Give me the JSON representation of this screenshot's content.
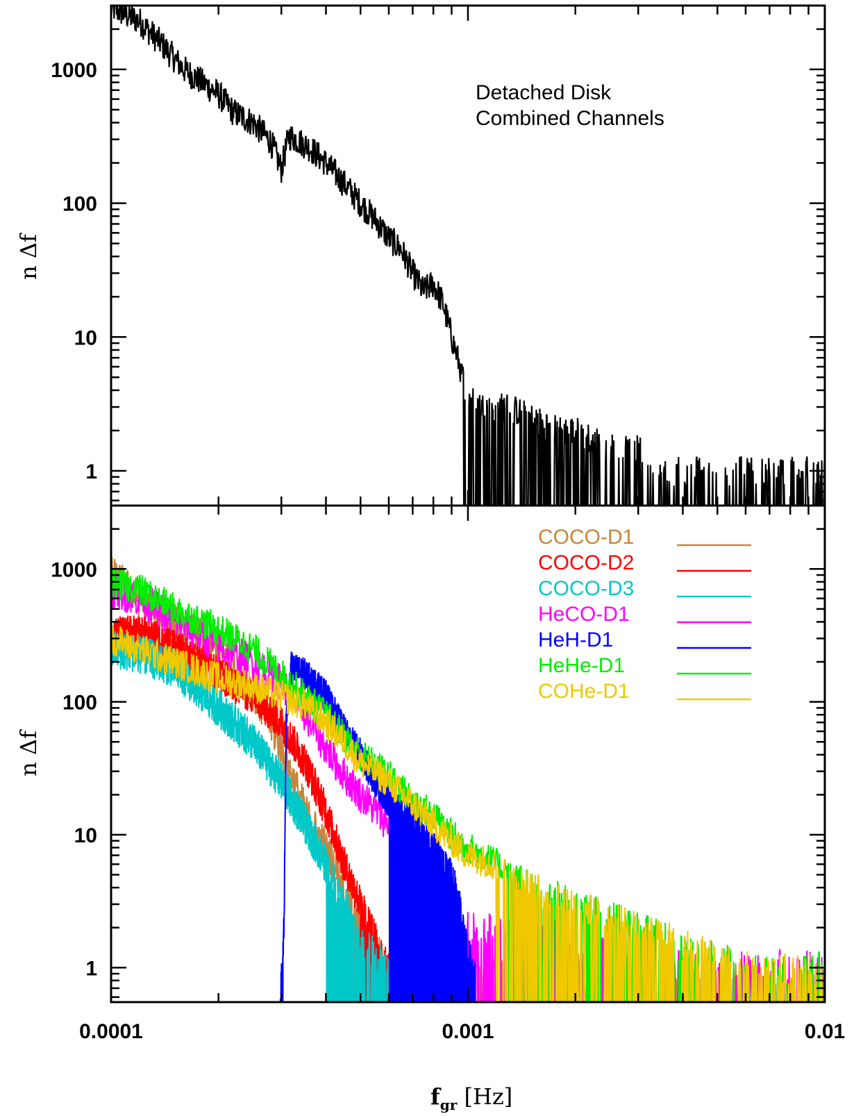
{
  "chart_data": [
    {
      "type": "line",
      "panel": "top",
      "ylabel": "n Δf",
      "xlabel": "",
      "x_scale": "log",
      "y_scale": "log",
      "xlim": [
        0.0001,
        0.01
      ],
      "ylim": [
        0.55,
        3000
      ],
      "y_ticks": [
        {
          "v": 1,
          "label": "1"
        },
        {
          "v": 10,
          "label": "10"
        },
        {
          "v": 100,
          "label": "100"
        },
        {
          "v": 1000,
          "label": "1000"
        }
      ],
      "annotation": [
        "Detached Disk",
        "Combined Channels"
      ],
      "series": [
        {
          "color": "#000000",
          "points": [
            [
              0.0001,
              2900
            ],
            [
              0.00012,
              2300
            ],
            [
              0.00014,
              1500
            ],
            [
              0.00016,
              1000
            ],
            [
              0.00018,
              800
            ],
            [
              0.0002,
              650
            ],
            [
              0.00022,
              480
            ],
            [
              0.00025,
              400
            ],
            [
              0.00028,
              290
            ],
            [
              0.0003,
              180
            ],
            [
              0.000315,
              320
            ],
            [
              0.00033,
              300
            ],
            [
              0.00036,
              260
            ],
            [
              0.0004,
              200
            ],
            [
              0.00045,
              140
            ],
            [
              0.0005,
              100
            ],
            [
              0.00055,
              75
            ],
            [
              0.0006,
              55
            ],
            [
              0.00065,
              45
            ],
            [
              0.0007,
              30
            ],
            [
              0.00075,
              22
            ],
            [
              0.0008,
              25
            ],
            [
              0.00085,
              18
            ],
            [
              0.0009,
              10
            ],
            [
              0.00095,
              6
            ],
            [
              0.001,
              3.5
            ],
            [
              0.0011,
              3
            ],
            [
              0.0012,
              3
            ],
            [
              0.0013,
              3
            ],
            [
              0.0015,
              2.5
            ],
            [
              0.0018,
              2
            ],
            [
              0.002,
              2
            ],
            [
              0.0025,
              1.5
            ],
            [
              0.003,
              1.5
            ],
            [
              0.0035,
              1
            ],
            [
              0.004,
              1
            ],
            [
              0.005,
              1
            ],
            [
              0.007,
              1
            ],
            [
              0.01,
              1
            ]
          ],
          "noise": 0.22,
          "drop_from": 0.00095
        }
      ]
    },
    {
      "type": "line",
      "panel": "bottom",
      "ylabel": "n Δf",
      "xlabel": "f_gr [Hz]",
      "x_scale": "log",
      "y_scale": "log",
      "xlim": [
        0.0001,
        0.01
      ],
      "ylim": [
        0.55,
        3000
      ],
      "x_ticks": [
        {
          "v": 0.0001,
          "label": "0.0001"
        },
        {
          "v": 0.001,
          "label": "0.001"
        },
        {
          "v": 0.01,
          "label": "0.01"
        }
      ],
      "y_ticks": [
        {
          "v": 1,
          "label": "1"
        },
        {
          "v": 10,
          "label": "10"
        },
        {
          "v": 100,
          "label": "100"
        },
        {
          "v": 1000,
          "label": "1000"
        }
      ],
      "series": [
        {
          "name": "COCO-D1",
          "color": "#c8843c",
          "points": [
            [
              0.0001,
              900
            ],
            [
              0.00012,
              600
            ],
            [
              0.00015,
              400
            ],
            [
              0.0002,
              250
            ],
            [
              0.00025,
              120
            ],
            [
              0.0003,
              45
            ],
            [
              0.00035,
              15
            ],
            [
              0.0004,
              8
            ],
            [
              0.00045,
              4
            ],
            [
              0.0005,
              2
            ],
            [
              0.0006,
              1
            ],
            [
              0.001,
              1
            ],
            [
              0.003,
              1
            ],
            [
              0.006,
              1
            ]
          ],
          "noise": 0.3,
          "drop_from": 0.00045
        },
        {
          "name": "COCO-D2",
          "color": "#ff0000",
          "points": [
            [
              0.0001,
              320
            ],
            [
              0.00012,
              330
            ],
            [
              0.00015,
              260
            ],
            [
              0.0002,
              160
            ],
            [
              0.00025,
              110
            ],
            [
              0.0003,
              70
            ],
            [
              0.00035,
              35
            ],
            [
              0.0004,
              15
            ],
            [
              0.00045,
              6
            ],
            [
              0.0005,
              3
            ],
            [
              0.0006,
              1
            ]
          ],
          "noise": 0.28,
          "drop_from": 0.0005
        },
        {
          "name": "COCO-D3",
          "color": "#00c8c8",
          "points": [
            [
              0.0001,
              250
            ],
            [
              0.00012,
              230
            ],
            [
              0.00015,
              180
            ],
            [
              0.0002,
              90
            ],
            [
              0.00025,
              50
            ],
            [
              0.0003,
              25
            ],
            [
              0.00035,
              12
            ],
            [
              0.0004,
              6
            ],
            [
              0.00045,
              3
            ],
            [
              0.0005,
              1.5
            ],
            [
              0.0006,
              1
            ]
          ],
          "noise": 0.3,
          "drop_from": 0.0004
        },
        {
          "name": "HeCO-D1",
          "color": "#ff00ff",
          "points": [
            [
              0.0001,
              700
            ],
            [
              0.00012,
              600
            ],
            [
              0.00015,
              420
            ],
            [
              0.0002,
              260
            ],
            [
              0.00025,
              200
            ],
            [
              0.0003,
              140
            ],
            [
              0.00035,
              80
            ],
            [
              0.0004,
              45
            ],
            [
              0.00045,
              28
            ],
            [
              0.0005,
              20
            ],
            [
              0.0006,
              12
            ],
            [
              0.0007,
              8
            ],
            [
              0.0008,
              4
            ],
            [
              0.0009,
              3
            ],
            [
              0.001,
              2
            ],
            [
              0.0015,
              2
            ],
            [
              0.002,
              1.5
            ],
            [
              0.003,
              1
            ],
            [
              0.006,
              1
            ],
            [
              0.01,
              1
            ]
          ],
          "noise": 0.28,
          "drop_from": 0.0007
        },
        {
          "name": "HeH-D1",
          "color": "#0000ff",
          "points": [
            [
              0.000298,
              0.55
            ],
            [
              0.000305,
              2
            ],
            [
              0.00031,
              80
            ],
            [
              0.00032,
              180
            ],
            [
              0.00035,
              160
            ],
            [
              0.0004,
              110
            ],
            [
              0.00045,
              60
            ],
            [
              0.0005,
              40
            ],
            [
              0.00055,
              25
            ],
            [
              0.0006,
              18
            ],
            [
              0.0007,
              14
            ],
            [
              0.0008,
              8
            ],
            [
              0.0009,
              5
            ],
            [
              0.00095,
              3
            ],
            [
              0.001,
              1.5
            ],
            [
              0.00105,
              0.8
            ]
          ],
          "noise": 0.25,
          "drop_from": 0.0006
        },
        {
          "name": "HeHe-D1",
          "color": "#00ee00",
          "points": [
            [
              0.0001,
              800
            ],
            [
              0.00012,
              700
            ],
            [
              0.00015,
              500
            ],
            [
              0.0002,
              350
            ],
            [
              0.00025,
              250
            ],
            [
              0.0003,
              160
            ],
            [
              0.00035,
              110
            ],
            [
              0.0004,
              80
            ],
            [
              0.00045,
              55
            ],
            [
              0.0005,
              40
            ],
            [
              0.0006,
              28
            ],
            [
              0.0007,
              18
            ],
            [
              0.0008,
              14
            ],
            [
              0.0009,
              10
            ],
            [
              0.001,
              8
            ],
            [
              0.0012,
              6
            ],
            [
              0.0015,
              4
            ],
            [
              0.002,
              3
            ],
            [
              0.003,
              2
            ],
            [
              0.004,
              1.5
            ],
            [
              0.006,
              1
            ],
            [
              0.01,
              1
            ]
          ],
          "noise": 0.25,
          "drop_from": 0.0013
        },
        {
          "name": "COHe-D1",
          "color": "#f0c800",
          "points": [
            [
              0.0001,
              300
            ],
            [
              0.00012,
              250
            ],
            [
              0.00015,
              200
            ],
            [
              0.0002,
              150
            ],
            [
              0.00025,
              130
            ],
            [
              0.0003,
              110
            ],
            [
              0.00035,
              95
            ],
            [
              0.0004,
              70
            ],
            [
              0.00045,
              50
            ],
            [
              0.0005,
              35
            ],
            [
              0.0006,
              25
            ],
            [
              0.0007,
              17
            ],
            [
              0.0008,
              12
            ],
            [
              0.0009,
              9
            ],
            [
              0.001,
              7
            ],
            [
              0.0012,
              6
            ],
            [
              0.0015,
              4
            ],
            [
              0.002,
              3
            ],
            [
              0.003,
              2
            ],
            [
              0.004,
              1.5
            ],
            [
              0.006,
              1
            ],
            [
              0.01,
              1
            ]
          ],
          "noise": 0.25,
          "drop_from": 0.0012
        }
      ]
    }
  ]
}
